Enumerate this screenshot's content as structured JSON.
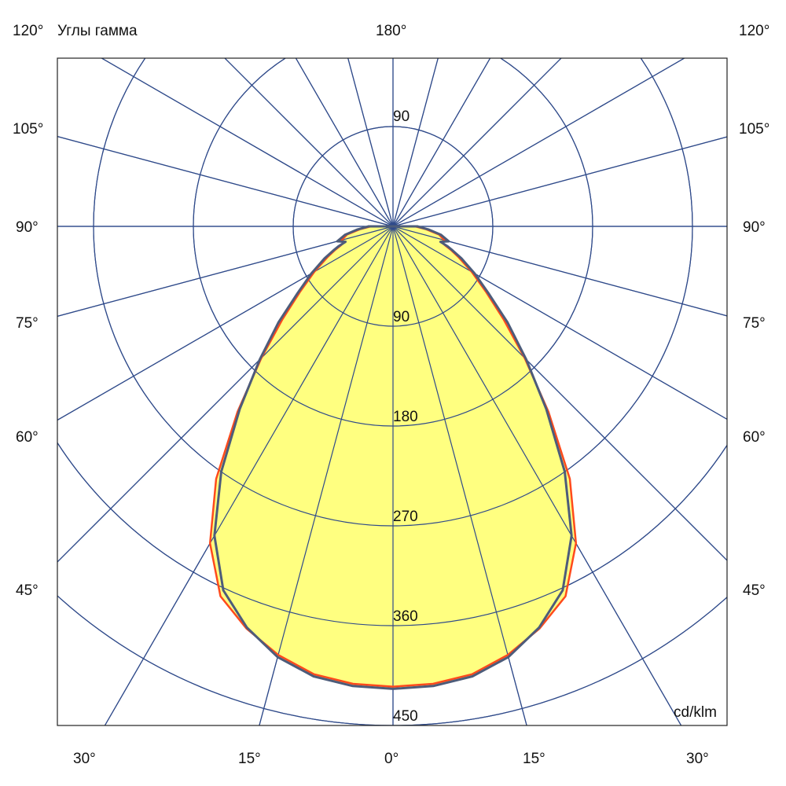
{
  "chart_data": {
    "type": "polar-line",
    "title": "Углы гамма",
    "unit_label": "cd/klm",
    "radial_ticks": [
      90,
      180,
      270,
      360,
      450
    ],
    "radial_max": 450,
    "top_ring_label": "90",
    "angle_step_deg": 15,
    "left_angle_labels": [
      "120°",
      "105°",
      "90°",
      "75°",
      "60°",
      "45°"
    ],
    "right_angle_labels": [
      "120°",
      "105°",
      "90°",
      "75°",
      "60°",
      "45°"
    ],
    "top_angle_label": "180°",
    "bottom_angle_labels": [
      "30°",
      "15°",
      "0°",
      "15°",
      "30°"
    ],
    "gamma": [
      0,
      5,
      10,
      15,
      20,
      25,
      30,
      35,
      40,
      45,
      50,
      55,
      60,
      65,
      68,
      70,
      72,
      75,
      80,
      85,
      90
    ],
    "series": [
      {
        "values": [
          415,
          414,
          410,
          400,
          386,
          368,
          330,
          278,
          218,
          168,
          130,
          102,
          82,
          65,
          56,
          50,
          46,
          48,
          42,
          30,
          20
        ],
        "color": "#ff4a1c"
      },
      {
        "values": [
          417,
          416,
          412,
          402,
          385,
          362,
          322,
          270,
          215,
          170,
          135,
          105,
          85,
          68,
          58,
          52,
          45,
          52,
          44,
          32,
          22
        ],
        "color": "#4d5c7a"
      }
    ],
    "fill_color": "#ffff80",
    "grid_color": "#2f4a8a"
  }
}
